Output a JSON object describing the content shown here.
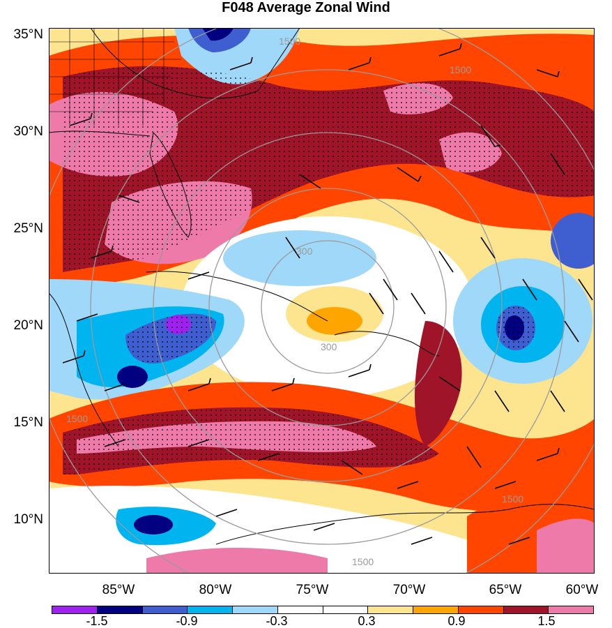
{
  "title": "F048 Average Zonal Wind",
  "axes": {
    "latitude_labels": [
      "35°N",
      "30°N",
      "25°N",
      "20°N",
      "15°N",
      "10°N"
    ],
    "longitude_labels": [
      "85°W",
      "80°W",
      "75°W",
      "70°W",
      "65°W",
      "60°W"
    ]
  },
  "range_rings": {
    "labels": [
      "300",
      "300",
      "1500",
      "1500",
      "1500",
      "1500",
      "1500"
    ],
    "color": "#9a9a9a"
  },
  "colorbar": {
    "colors": [
      "#a020f0",
      "#000080",
      "#3f5fd0",
      "#00b4f0",
      "#9fd8f8",
      "#ffffff",
      "#ffffff",
      "#fde590",
      "#ffa500",
      "#ff4500",
      "#a0142a",
      "#ee7aaa"
    ],
    "tick_labels": [
      "-1.5",
      "-0.9",
      "-0.3",
      "0.3",
      "0.9",
      "1.5"
    ]
  },
  "map_colors": {
    "land_outline": "#000000",
    "stipple": "#000000"
  }
}
